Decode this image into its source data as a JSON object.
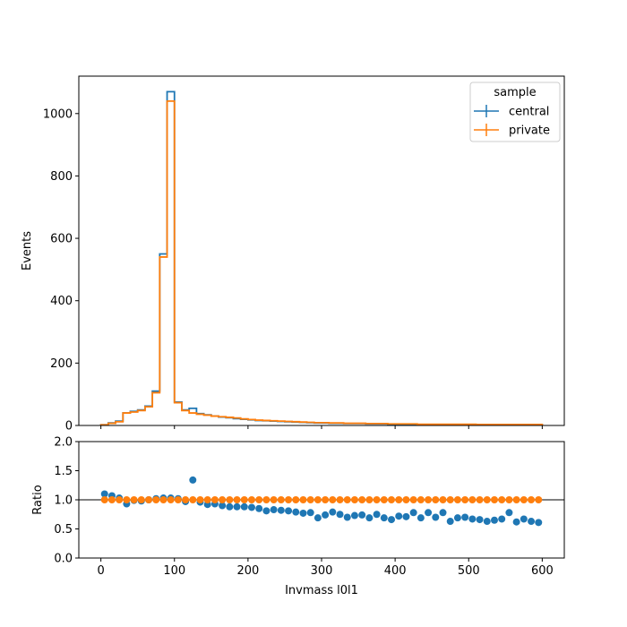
{
  "colors": {
    "central": "#1f77b4",
    "private": "#ff7f0e",
    "axis": "#000000",
    "frame": "#000000",
    "background": "#ffffff"
  },
  "chart_data": [
    {
      "type": "histogram-step",
      "ylabel": "Events",
      "xlim": [
        -30,
        630
      ],
      "ylim": [
        0,
        1120
      ],
      "xticks": [
        0,
        100,
        200,
        300,
        400,
        500,
        600
      ],
      "xtick_labels_shown": false,
      "yticks": [
        0,
        200,
        400,
        600,
        800,
        1000
      ],
      "ytick_labels": [
        "0",
        "200",
        "400",
        "600",
        "800",
        "1000"
      ],
      "grid": false,
      "bin_edges": [
        0,
        10,
        20,
        30,
        40,
        50,
        60,
        70,
        80,
        90,
        100,
        110,
        120,
        130,
        140,
        150,
        160,
        170,
        180,
        190,
        200,
        210,
        220,
        230,
        240,
        250,
        260,
        270,
        280,
        290,
        300,
        310,
        320,
        330,
        340,
        350,
        360,
        370,
        380,
        390,
        400,
        410,
        420,
        430,
        440,
        450,
        460,
        470,
        480,
        490,
        500,
        510,
        520,
        530,
        540,
        550,
        560,
        570,
        580,
        590,
        600
      ],
      "series": [
        {
          "name": "central",
          "values": [
            2,
            8,
            14,
            40,
            45,
            50,
            62,
            110,
            550,
            1070,
            75,
            50,
            55,
            38,
            34,
            30,
            27,
            25,
            22,
            20,
            18,
            16,
            15,
            14,
            13,
            12,
            11,
            10,
            9,
            8,
            8,
            7,
            7,
            6,
            6,
            6,
            5,
            5,
            5,
            4,
            4,
            4,
            4,
            3,
            3,
            3,
            3,
            3,
            3,
            3,
            3,
            2,
            2,
            2,
            2,
            2,
            2,
            2,
            2,
            2
          ]
        },
        {
          "name": "private",
          "values": [
            2,
            7,
            12,
            40,
            43,
            48,
            60,
            105,
            540,
            1040,
            73,
            48,
            40,
            36,
            33,
            30,
            28,
            26,
            24,
            21,
            19,
            17,
            16,
            15,
            14,
            13,
            12,
            11,
            10,
            9,
            9,
            8,
            8,
            7,
            7,
            7,
            6,
            6,
            6,
            5,
            5,
            5,
            5,
            4,
            4,
            4,
            4,
            4,
            4,
            4,
            4,
            3,
            3,
            3,
            3,
            3,
            3,
            3,
            3,
            3
          ]
        }
      ],
      "legend": {
        "title": "sample",
        "entries": [
          "central",
          "private"
        ],
        "placement": "upper right"
      }
    },
    {
      "type": "scatter",
      "ylabel": "Ratio",
      "xlabel": "Invmass l0l1",
      "xlim": [
        -30,
        630
      ],
      "ylim": [
        0.0,
        2.0
      ],
      "xticks": [
        0,
        100,
        200,
        300,
        400,
        500,
        600
      ],
      "xtick_labels": [
        "0",
        "100",
        "200",
        "300",
        "400",
        "500",
        "600"
      ],
      "yticks": [
        0.0,
        0.5,
        1.0,
        1.5,
        2.0
      ],
      "ytick_labels": [
        "0.0",
        "0.5",
        "1.0",
        "1.5",
        "2.0"
      ],
      "reference_line": 1.0,
      "grid": false,
      "x": [
        5,
        15,
        25,
        35,
        45,
        55,
        65,
        75,
        85,
        95,
        105,
        115,
        125,
        135,
        145,
        155,
        165,
        175,
        185,
        195,
        205,
        215,
        225,
        235,
        245,
        255,
        265,
        275,
        285,
        295,
        305,
        315,
        325,
        335,
        345,
        355,
        365,
        375,
        385,
        395,
        405,
        415,
        425,
        435,
        445,
        455,
        465,
        475,
        485,
        495,
        505,
        515,
        525,
        535,
        545,
        555,
        565,
        575,
        585,
        595
      ],
      "series": [
        {
          "name": "central",
          "values": [
            1.1,
            1.07,
            1.03,
            0.93,
            0.99,
            0.98,
            1.0,
            1.02,
            1.03,
            1.03,
            1.02,
            0.97,
            1.34,
            0.96,
            0.92,
            0.93,
            0.9,
            0.88,
            0.88,
            0.88,
            0.87,
            0.85,
            0.81,
            0.83,
            0.82,
            0.81,
            0.79,
            0.77,
            0.78,
            0.69,
            0.74,
            0.79,
            0.75,
            0.7,
            0.73,
            0.74,
            0.69,
            0.75,
            0.69,
            0.66,
            0.72,
            0.71,
            0.78,
            0.69,
            0.78,
            0.7,
            0.78,
            0.63,
            0.69,
            0.7,
            0.67,
            0.66,
            0.63,
            0.65,
            0.67,
            0.78,
            0.62,
            0.67,
            0.63,
            0.61
          ]
        },
        {
          "name": "private",
          "values": [
            1.0,
            1.0,
            1.0,
            1.0,
            1.0,
            1.0,
            1.0,
            1.0,
            1.0,
            1.0,
            1.0,
            1.0,
            1.0,
            1.0,
            1.0,
            1.0,
            1.0,
            1.0,
            1.0,
            1.0,
            1.0,
            1.0,
            1.0,
            1.0,
            1.0,
            1.0,
            1.0,
            1.0,
            1.0,
            1.0,
            1.0,
            1.0,
            1.0,
            1.0,
            1.0,
            1.0,
            1.0,
            1.0,
            1.0,
            1.0,
            1.0,
            1.0,
            1.0,
            1.0,
            1.0,
            1.0,
            1.0,
            1.0,
            1.0,
            1.0,
            1.0,
            1.0,
            1.0,
            1.0,
            1.0,
            1.0,
            1.0,
            1.0,
            1.0,
            1.0
          ]
        }
      ]
    }
  ]
}
